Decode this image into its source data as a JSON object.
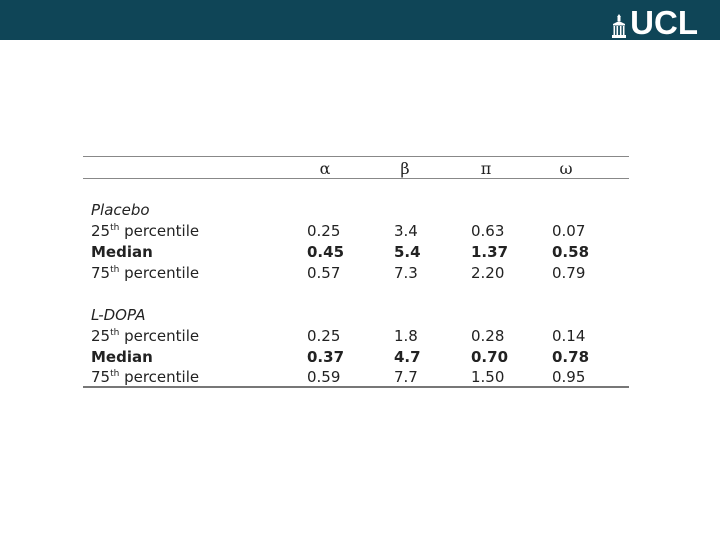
{
  "logo": {
    "text": "UCL",
    "emblem": "portico-icon"
  },
  "colors": {
    "bar": "#0f4557"
  },
  "table": {
    "headers": [
      "α",
      "β",
      "π",
      "ω"
    ],
    "groups": [
      {
        "title": "Placebo",
        "rows": [
          {
            "pre": "25",
            "sup": "th",
            "post": " percentile",
            "bold": false,
            "values": [
              "0.25",
              "3.4",
              "0.63",
              "0.07"
            ]
          },
          {
            "pre": "Median",
            "sup": "",
            "post": "",
            "bold": true,
            "values": [
              "0.45",
              "5.4",
              "1.37",
              "0.58"
            ]
          },
          {
            "pre": "75",
            "sup": "th",
            "post": " percentile",
            "bold": false,
            "values": [
              "0.57",
              "7.3",
              "2.20",
              "0.79"
            ]
          }
        ]
      },
      {
        "title": "L-DOPA",
        "rows": [
          {
            "pre": "25",
            "sup": "th",
            "post": " percentile",
            "bold": false,
            "values": [
              "0.25",
              "1.8",
              "0.28",
              "0.14"
            ]
          },
          {
            "pre": "Median",
            "sup": "",
            "post": "",
            "bold": true,
            "values": [
              "0.37",
              "4.7",
              "0.70",
              "0.78"
            ]
          },
          {
            "pre": "75",
            "sup": "th",
            "post": " percentile",
            "bold": false,
            "values": [
              "0.59",
              "7.7",
              "1.50",
              "0.95"
            ]
          }
        ]
      }
    ]
  }
}
